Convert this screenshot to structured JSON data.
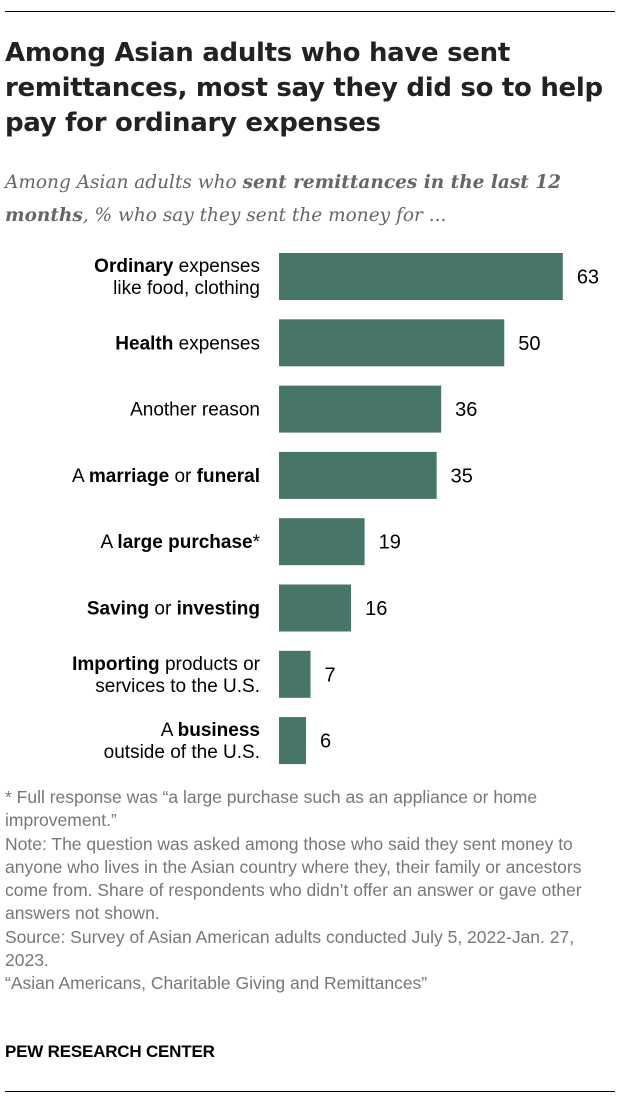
{
  "title": "Among Asian adults who have sent remittances, most say they did so to help pay for ordinary expenses",
  "subtitle": {
    "prefix": "Among Asian adults who ",
    "bold": "sent remittances in the last 12 months",
    "suffix": ", % who say they sent the money for ..."
  },
  "colors": {
    "bar": "#477569",
    "title": "#222222",
    "subtitle": "#666666",
    "note": "#777777"
  },
  "chart_data": {
    "type": "bar",
    "orientation": "horizontal",
    "categories": [
      "Ordinary expenses like food, clothing",
      "Health expenses",
      "Another reason",
      "A marriage or funeral",
      "A large purchase*",
      "Saving or investing",
      "Importing products or services to the U.S.",
      "A business outside of the U.S."
    ],
    "category_label_lines": [
      [
        [
          {
            "t": "Ordinary",
            "b": true
          },
          {
            "t": " expenses",
            "b": false
          }
        ],
        [
          {
            "t": "like food, clothing",
            "b": false
          }
        ]
      ],
      [
        [
          {
            "t": "Health",
            "b": true
          },
          {
            "t": " expenses",
            "b": false
          }
        ]
      ],
      [
        [
          {
            "t": "Another reason",
            "b": false
          }
        ]
      ],
      [
        [
          {
            "t": "A ",
            "b": false
          },
          {
            "t": "marriage",
            "b": true
          },
          {
            "t": " or ",
            "b": false
          },
          {
            "t": "funeral",
            "b": true
          }
        ]
      ],
      [
        [
          {
            "t": "A ",
            "b": false
          },
          {
            "t": "large purchase",
            "b": true
          },
          {
            "t": "*",
            "b": false
          }
        ]
      ],
      [
        [
          {
            "t": "Saving",
            "b": true
          },
          {
            "t": " or ",
            "b": false
          },
          {
            "t": "investing",
            "b": true
          }
        ]
      ],
      [
        [
          {
            "t": "Importing",
            "b": true
          },
          {
            "t": " products or",
            "b": false
          }
        ],
        [
          {
            "t": "services to the U.S.",
            "b": false
          }
        ]
      ],
      [
        [
          {
            "t": "A ",
            "b": false
          },
          {
            "t": "business",
            "b": true
          }
        ],
        [
          {
            "t": "outside of the U.S.",
            "b": false
          }
        ]
      ]
    ],
    "values": [
      63,
      50,
      36,
      35,
      19,
      16,
      7,
      6
    ],
    "xlim": [
      0,
      100
    ],
    "grid": false,
    "legend": "none"
  },
  "notes": {
    "footnote": "* Full response was “a large purchase such as an appliance or home improvement.”",
    "note": "Note: The question was asked among those who said they sent money to anyone who lives in the Asian country where they, their family or ancestors come from. Share of respondents who didn’t offer an answer or gave other answers not shown.",
    "source": "Source: Survey of Asian American adults conducted July 5, 2022-Jan. 27, 2023.",
    "report": "“Asian Americans, Charitable Giving and Remittances”"
  },
  "credit": "PEW RESEARCH CENTER"
}
